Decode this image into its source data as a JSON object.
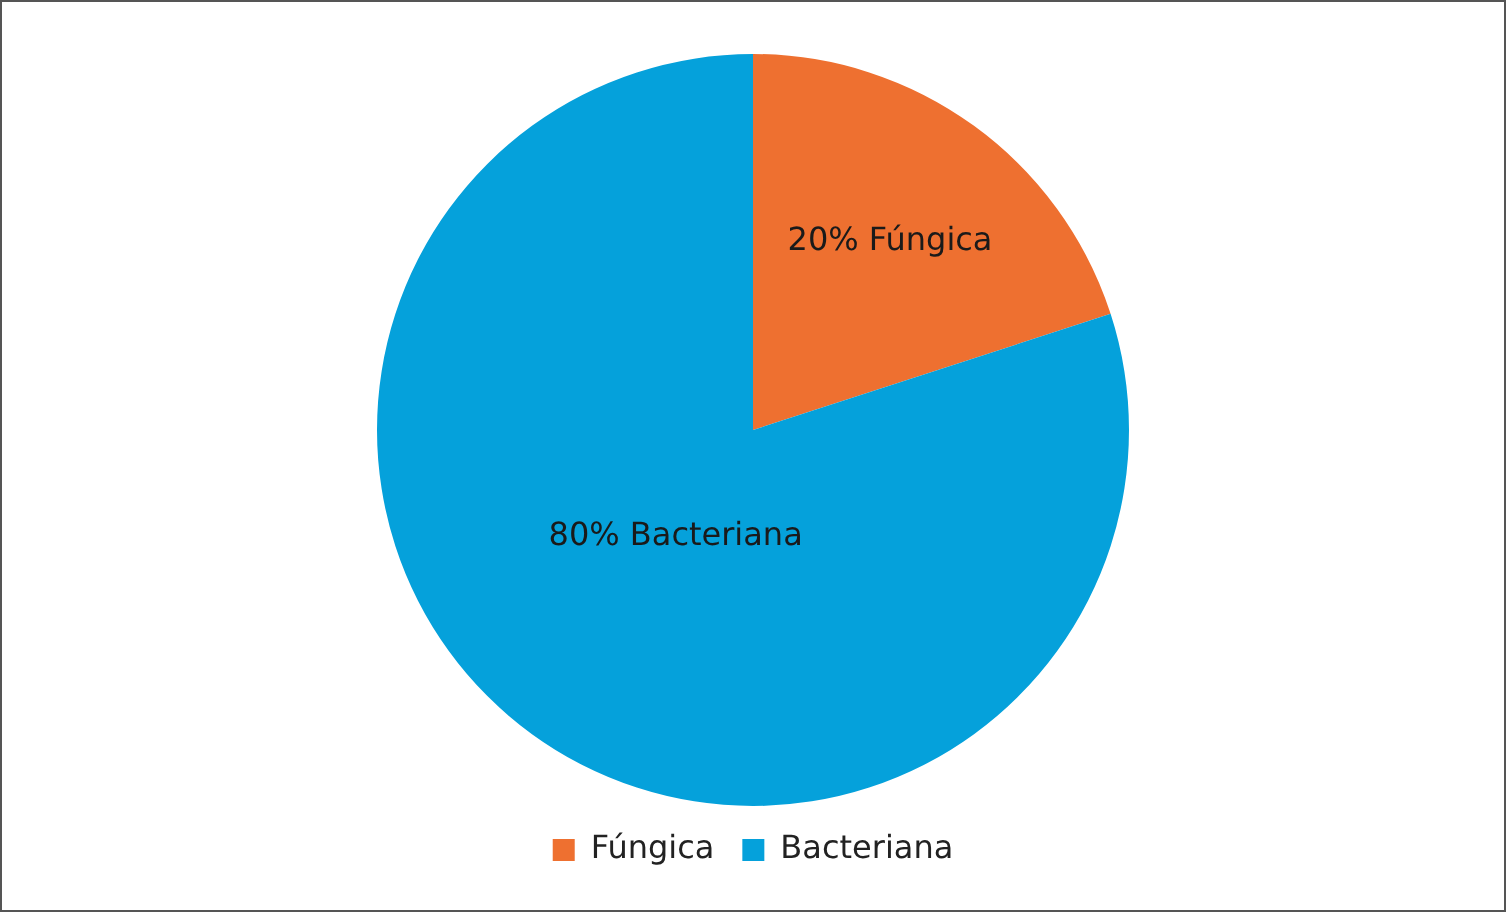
{
  "chart_data": {
    "type": "pie",
    "categories": [
      "Fúngica",
      "Bacteriana"
    ],
    "values": [
      20,
      80
    ],
    "colors": [
      "#ee7030",
      "#05a1db"
    ],
    "value_labels": [
      "20% Fúngica",
      "80% Bacteriana"
    ],
    "legend": "bottom"
  }
}
